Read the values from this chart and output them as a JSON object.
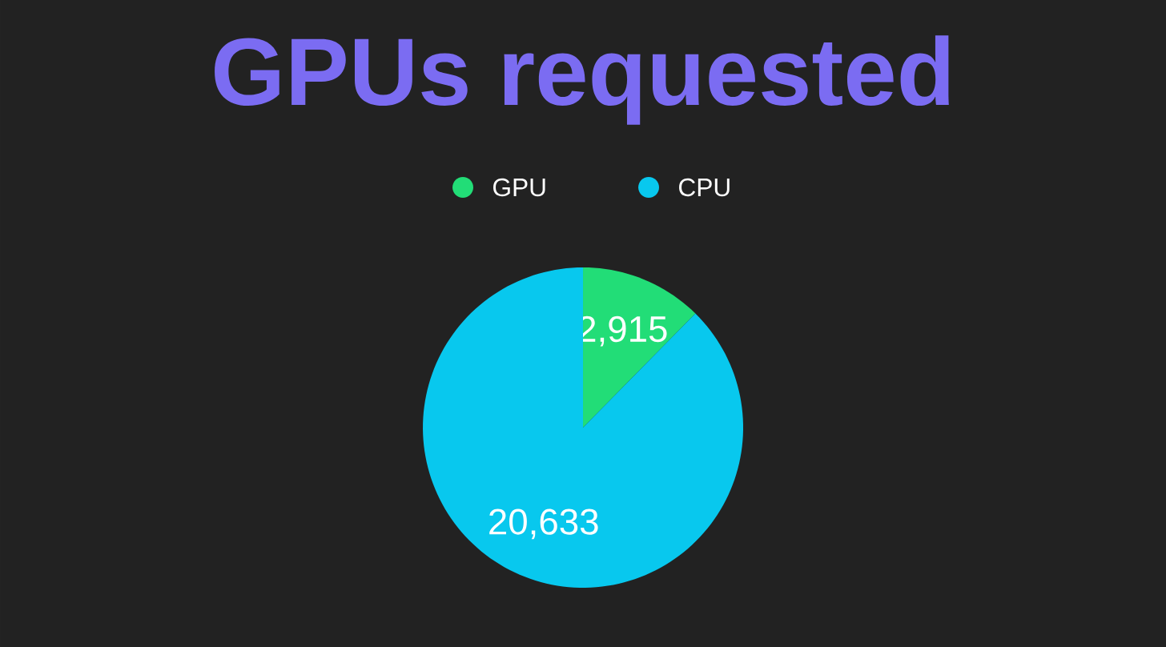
{
  "chart_data": {
    "type": "pie",
    "title": "GPUs requested",
    "categories": [
      "GPU",
      "CPU"
    ],
    "values": [
      2915,
      20633
    ],
    "value_labels": [
      "2,915",
      "20,633"
    ],
    "colors": [
      "#22dd77",
      "#08c8ee"
    ],
    "legend": "top"
  }
}
